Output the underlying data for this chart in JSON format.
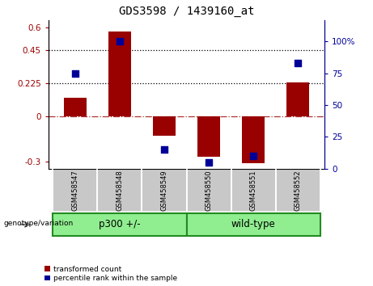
{
  "title": "GDS3598 / 1439160_at",
  "samples": [
    "GSM458547",
    "GSM458548",
    "GSM458549",
    "GSM458550",
    "GSM458551",
    "GSM458552"
  ],
  "red_bars": [
    0.13,
    0.575,
    -0.13,
    -0.27,
    -0.315,
    0.228
  ],
  "blue_dots_pct": [
    75,
    100,
    15,
    5,
    10,
    83
  ],
  "group1_indices": [
    0,
    1,
    2
  ],
  "group2_indices": [
    3,
    4,
    5
  ],
  "group1_label": "p300 +/-",
  "group2_label": "wild-type",
  "group_label": "genotype/variation",
  "ylim_left": [
    -0.35,
    0.65
  ],
  "ylim_right": [
    0.0,
    116.67
  ],
  "yticks_left": [
    -0.3,
    0,
    0.225,
    0.45,
    0.6
  ],
  "ytick_labels_left": [
    "-0.3",
    "0",
    "0.225",
    "0.45",
    "0.6"
  ],
  "yticks_right": [
    0,
    25,
    50,
    75,
    100
  ],
  "ytick_labels_right": [
    "0",
    "25",
    "50",
    "75",
    "100%"
  ],
  "hlines": [
    0.225,
    0.45
  ],
  "red_color": "#990000",
  "blue_color": "#000099",
  "green_color": "#90EE90",
  "green_border": "#228B22",
  "legend_red": "transformed count",
  "legend_blue": "percentile rank within the sample",
  "bar_width": 0.5,
  "dot_size": 30,
  "background_gray": "#C8C8C8"
}
